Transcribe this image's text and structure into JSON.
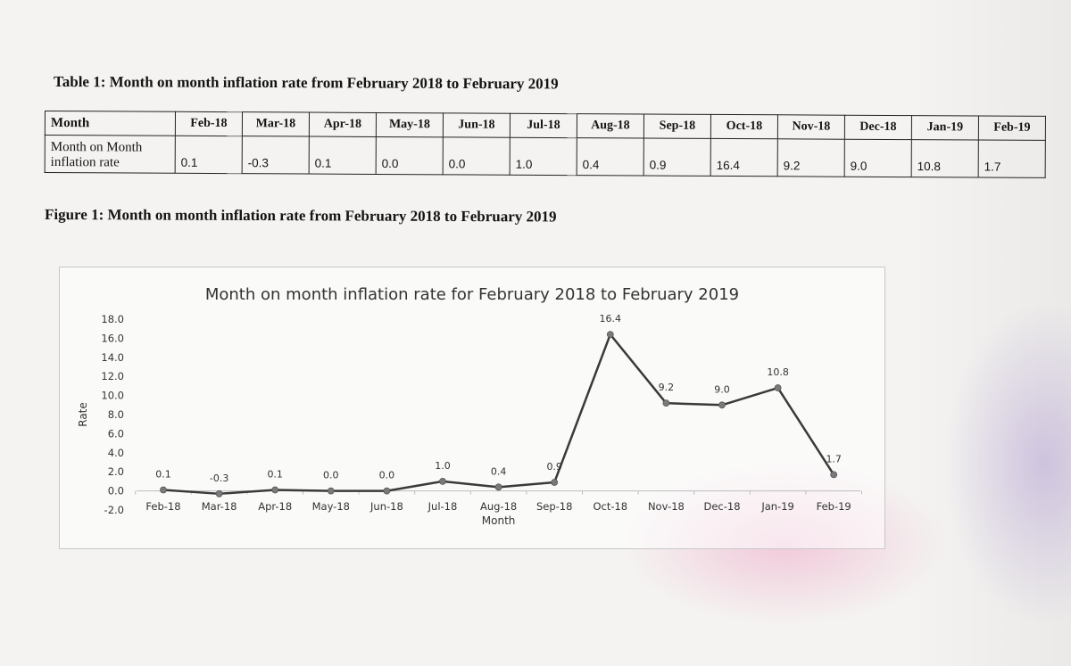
{
  "table": {
    "caption": "Table 1: Month on month inflation rate from February 2018 to February 2019",
    "header_label": "Month",
    "row_label": "Month on Month inflation rate",
    "months": [
      "Feb-18",
      "Mar-18",
      "Apr-18",
      "May-18",
      "Jun-18",
      "Jul-18",
      "Aug-18",
      "Sep-18",
      "Oct-18",
      "Nov-18",
      "Dec-18",
      "Jan-19",
      "Feb-19"
    ],
    "values": [
      "0.1",
      "-0.3",
      "0.1",
      "0.0",
      "0.0",
      "1.0",
      "0.4",
      "0.9",
      "16.4",
      "9.2",
      "9.0",
      "10.8",
      "1.7"
    ]
  },
  "figure": {
    "caption": "Figure 1: Month on month inflation rate from February 2018 to February 2019"
  },
  "chart_data": {
    "type": "line",
    "title": "Month on month inflation rate for February 2018 to February 2019",
    "xlabel": "Month",
    "ylabel": "Rate",
    "categories": [
      "Feb-18",
      "Mar-18",
      "Apr-18",
      "May-18",
      "Jun-18",
      "Jul-18",
      "Aug-18",
      "Sep-18",
      "Oct-18",
      "Nov-18",
      "Dec-18",
      "Jan-19",
      "Feb-19"
    ],
    "values": [
      0.1,
      -0.3,
      0.1,
      0.0,
      0.0,
      1.0,
      0.4,
      0.9,
      16.4,
      9.2,
      9.0,
      10.8,
      1.7
    ],
    "data_labels": [
      "0.1",
      "-0.3",
      "0.1",
      "0.0",
      "0.0",
      "1.0",
      "0.4",
      "0.9",
      "16.4",
      "9.2",
      "9.0",
      "10.8",
      "1.7"
    ],
    "yticks": [
      "-2.0",
      "0.0",
      "2.0",
      "4.0",
      "6.0",
      "8.0",
      "10.0",
      "12.0",
      "14.0",
      "16.0",
      "18.0"
    ],
    "ylim": [
      -2,
      18
    ],
    "grid": false,
    "legend": "none",
    "line_color": "#3a3a3a",
    "marker_color": "#7a7a7a"
  }
}
